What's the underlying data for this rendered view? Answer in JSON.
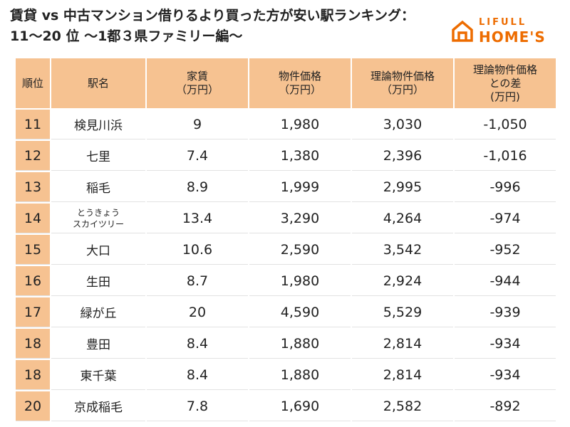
{
  "title": {
    "line1": "賃貸 vs 中古マンション借りるより買った方が安い駅ランキング：",
    "line2": "11～20 位 ～1都３県ファミリー編～"
  },
  "logo": {
    "top": "LIFULL",
    "main": "HOME'S",
    "icon": "house-icon",
    "color": "#ed6c00"
  },
  "table": {
    "headers": {
      "rank": "順位",
      "station": "駅名",
      "rent": "家賃\n（万円）",
      "price": "物件価格\n（万円）",
      "theory": "理論物件価格\n（万円）",
      "diff": "理論物件価格\nとの差\n(万円)"
    },
    "rows": [
      {
        "rank": "11",
        "station": "検見川浜",
        "rent": "9",
        "price": "1,980",
        "theory": "3,030",
        "diff": "-1,050"
      },
      {
        "rank": "12",
        "station": "七里",
        "rent": "7.4",
        "price": "1,380",
        "theory": "2,396",
        "diff": "-1,016"
      },
      {
        "rank": "13",
        "station": "稲毛",
        "rent": "8.9",
        "price": "1,999",
        "theory": "2,995",
        "diff": "-996"
      },
      {
        "rank": "14",
        "station": "とうきょう\nスカイツリー",
        "rent": "13.4",
        "price": "3,290",
        "theory": "4,264",
        "diff": "-974"
      },
      {
        "rank": "15",
        "station": "大口",
        "rent": "10.6",
        "price": "2,590",
        "theory": "3,542",
        "diff": "-952"
      },
      {
        "rank": "16",
        "station": "生田",
        "rent": "8.7",
        "price": "1,980",
        "theory": "2,924",
        "diff": "-944"
      },
      {
        "rank": "17",
        "station": "緑が丘",
        "rent": "20",
        "price": "4,590",
        "theory": "5,529",
        "diff": "-939"
      },
      {
        "rank": "18",
        "station": "豊田",
        "rent": "8.4",
        "price": "1,880",
        "theory": "2,814",
        "diff": "-934"
      },
      {
        "rank": "18",
        "station": "東千葉",
        "rent": "8.4",
        "price": "1,880",
        "theory": "2,814",
        "diff": "-934"
      },
      {
        "rank": "20",
        "station": "京成稲毛",
        "rent": "7.8",
        "price": "1,690",
        "theory": "2,582",
        "diff": "-892"
      }
    ]
  },
  "colors": {
    "header_bg": "#f6c291",
    "text": "#222222"
  }
}
